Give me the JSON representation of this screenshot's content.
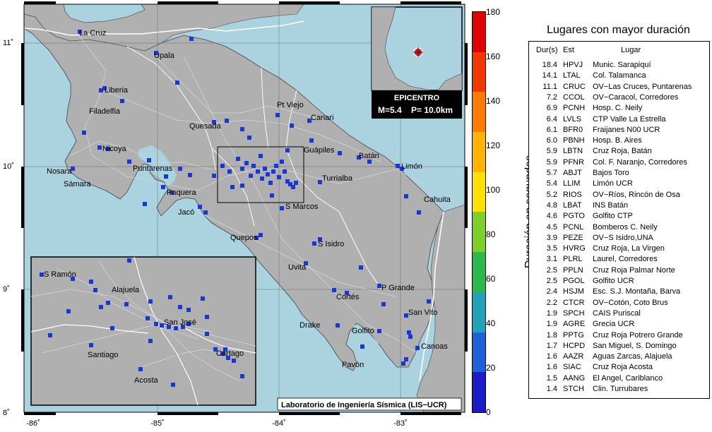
{
  "map": {
    "lon_ticks": [
      "-86˚",
      "-85˚",
      "-84˚",
      "-83˚"
    ],
    "lat_ticks": [
      "11˚",
      "10˚",
      "9˚",
      "8˚"
    ],
    "places": [
      "La Cruz",
      "Upala",
      "Liberia",
      "Filadelfia",
      "Quesada",
      "Pt Viejo",
      "Cariari",
      "Nicoya",
      "Guápiles",
      "Batán",
      "Limón",
      "Nosara",
      "Puntarenas",
      "Sámara",
      "Turrialba",
      "Paquera",
      "Cahuita",
      "Jacó",
      "S Marcos",
      "Quepos",
      "S Isidro",
      "Uvita",
      "P Grande",
      "Cortés",
      "San Vito",
      "Drake",
      "Golfito",
      "Canoas",
      "Pavón"
    ],
    "inset_places": [
      "S Ramón",
      "Alajuela",
      "San José",
      "Santiago",
      "Cartago",
      "Acosta"
    ],
    "epicenter": {
      "title": "EPICENTRO",
      "magnitude": "M=5.4",
      "depth": "P= 10.0km"
    },
    "credit": "Laboratorio de Ingeniería Sísmica (LIS−UCR)",
    "colors": {
      "sea": "#aad3df",
      "land": "#b0b0b0",
      "station": "#1a37d6",
      "roads": "#d8d8d8"
    }
  },
  "colorbar": {
    "title": "Duración en segundos",
    "ticks": [
      "0",
      "20",
      "40",
      "60",
      "80",
      "100",
      "120",
      "140",
      "160",
      "180"
    ],
    "colors": [
      "#1b1bc8",
      "#1f62d8",
      "#22a2b8",
      "#2cb84a",
      "#7fcf2a",
      "#ffe000",
      "#ffb400",
      "#ff7a00",
      "#f03800",
      "#e00000"
    ]
  },
  "table": {
    "title": "Lugares con mayor duración",
    "headers": {
      "dur": "Dur(s)",
      "est": "Est",
      "lugar": "Lugar"
    },
    "rows": [
      [
        "18.4",
        "HPVJ",
        "Munic. Sarapiquí"
      ],
      [
        "14.1",
        "LTAL",
        "Col. Talamanca"
      ],
      [
        "11.1",
        "CRUC",
        "OV−Las Cruces, Puntarenas"
      ],
      [
        "7.2",
        "CCOL",
        "OV−Caracol, Corredores"
      ],
      [
        "6.9",
        "PCNH",
        "Hosp. C. Neily"
      ],
      [
        "6.4",
        "LVLS",
        "CTP Valle La Estrella"
      ],
      [
        "6.1",
        "BFR0",
        "Fraijanes N00 UCR"
      ],
      [
        "6.0",
        "PBNH",
        "Hosp. B. Aires"
      ],
      [
        "5.9",
        "LBTN",
        "Cruz Roja, Batán"
      ],
      [
        "5.9",
        "PFNR",
        "Col. F. Naranjo, Corredores"
      ],
      [
        "5.7",
        "ABJT",
        "Bajos Toro"
      ],
      [
        "5.4",
        "LLIM",
        "Limón UCR"
      ],
      [
        "5.2",
        "RIOS",
        "OV−Ríos, Rincón de Osa"
      ],
      [
        "4.8",
        "LBAT",
        "INS Batán"
      ],
      [
        "4.6",
        "PGTO",
        "Golfito CTP"
      ],
      [
        "4.5",
        "PCNL",
        "Bomberos C. Neily"
      ],
      [
        "3.9",
        "PEZE",
        "OV−S Isidro,UNA"
      ],
      [
        "3.5",
        "HVRG",
        "Cruz Roja, La Virgen"
      ],
      [
        "3.1",
        "PLRL",
        "Laurel, Corredores"
      ],
      [
        "2.5",
        "PPLN",
        "Cruz Roja Palmar Norte"
      ],
      [
        "2.5",
        "PGOL",
        "Golfito UCR"
      ],
      [
        "2.4",
        "HSJM",
        "Esc. S.J. Montaña, Barva"
      ],
      [
        "2.2",
        "CTCR",
        "OV−Cotón, Coto Brus"
      ],
      [
        "1.9",
        "SPCH",
        "CAIS Puriscal"
      ],
      [
        "1.9",
        "AGRE",
        "Grecia UCR"
      ],
      [
        "1.8",
        "PPTG",
        "Cruz Roja Potrero Grande"
      ],
      [
        "1.7",
        "HCPD",
        "San Miguel, S. Domingo"
      ],
      [
        "1.6",
        "AAZR",
        "Aguas Zarcas, Alajuela"
      ],
      [
        "1.6",
        "SIAC",
        "Cruz Roja Acosta"
      ],
      [
        "1.5",
        "AANG",
        "El Angel, Cariblanco"
      ],
      [
        "1.4",
        "STCH",
        "Clin. Turrubares"
      ]
    ]
  }
}
